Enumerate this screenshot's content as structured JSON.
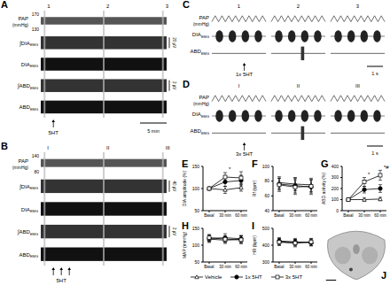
{
  "panels": [
    {
      "panel": "A",
      "type": "trace",
      "markers": [
        "1",
        "2",
        "3"
      ],
      "rows": [
        {
          "name": "PAP",
          "unit": "(mmHg)",
          "yticks": [
            130,
            170
          ]
        },
        {
          "name": "∫DIA",
          "sub": "EMG",
          "scale_bar": "20 µV"
        },
        {
          "name": "DIA",
          "sub": "EMG"
        },
        {
          "name": "∫ABD",
          "sub": "EMG",
          "scale_bar": "2 µV"
        },
        {
          "name": "ABD",
          "sub": "EMG"
        }
      ],
      "time_bar": "5 min",
      "stimulus": "5HT",
      "stimulus_count": 1
    },
    {
      "panel": "B",
      "type": "trace",
      "markers": [
        "I",
        "II",
        "III"
      ],
      "rows": [
        {
          "name": "PAP",
          "unit": "(mmHg)",
          "yticks": [
            80,
            140
          ]
        },
        {
          "name": "∫DIA",
          "sub": "EMG",
          "scale_bar": "40 µV"
        },
        {
          "name": "DIA",
          "sub": "EMG"
        },
        {
          "name": "∫ABD",
          "sub": "EMG",
          "scale_bar": "2 µV"
        },
        {
          "name": "ABD",
          "sub": "EMG"
        }
      ],
      "stimulus": "5HT",
      "stimulus_count": 3
    },
    {
      "panel": "C",
      "type": "trace",
      "columns": [
        "1",
        "2",
        "3"
      ],
      "rows": [
        {
          "name": "PAP",
          "unit": "(mmHg)"
        },
        {
          "name": "DIA",
          "sub": "EMG"
        },
        {
          "name": "ABD",
          "sub": "EMG"
        }
      ],
      "time_bar": "1 s",
      "stimulus": "1x 5HT",
      "stimulus_count": 1
    },
    {
      "panel": "D",
      "type": "trace",
      "columns": [
        "I",
        "II",
        "III"
      ],
      "rows": [
        {
          "name": "PAP",
          "unit": "(mmHg)"
        },
        {
          "name": "DIA",
          "sub": "EMG"
        },
        {
          "name": "ABD",
          "sub": "EMG"
        }
      ],
      "time_bar": "1 s",
      "stimulus": "3x 5HT",
      "stimulus_count": 1
    }
  ],
  "chart_data": [
    {
      "type": "line",
      "panel": "E",
      "y_label": "DIA amplitude (%)",
      "categories": [
        "Basal",
        "30 min",
        "60 min"
      ],
      "ylim": [
        50,
        150
      ],
      "yticks": [
        50,
        100,
        150
      ],
      "series": [
        {
          "name": "Vehicle",
          "color": "#000000",
          "marker": "open-triangle",
          "values": [
            100,
            97,
            102
          ],
          "errors": [
            0,
            8,
            8
          ]
        },
        {
          "name": "1x 5HT",
          "color": "#000000",
          "marker": "filled-circle",
          "values": [
            100,
            115,
            118
          ],
          "errors": [
            0,
            10,
            12
          ]
        },
        {
          "name": "3x 5HT",
          "color": "#000000",
          "marker": "open-square",
          "values": [
            100,
            126,
            124
          ],
          "errors": [
            0,
            10,
            14
          ]
        }
      ],
      "annotations": [
        {
          "series": "3x 5HT",
          "category": "30 min",
          "text": "*"
        }
      ]
    },
    {
      "type": "line",
      "panel": "F",
      "y_label": "Rf (rpm)",
      "categories": [
        "Basal",
        "30 min",
        "60 min"
      ],
      "ylim": [
        40,
        100
      ],
      "yticks": [
        40,
        60,
        80,
        100
      ],
      "series": [
        {
          "name": "Vehicle",
          "color": "#000000",
          "marker": "open-triangle",
          "values": [
            78,
            76,
            75
          ],
          "errors": [
            8,
            9,
            9
          ]
        },
        {
          "name": "1x 5HT",
          "color": "#000000",
          "marker": "filled-circle",
          "values": [
            76,
            74,
            72
          ],
          "errors": [
            8,
            10,
            10
          ]
        },
        {
          "name": "3x 5HT",
          "color": "#000000",
          "marker": "open-square",
          "values": [
            75,
            72,
            73
          ],
          "errors": [
            9,
            10,
            9
          ]
        }
      ],
      "annotations": []
    },
    {
      "type": "line",
      "panel": "G",
      "y_label": "ABD activity (%)",
      "categories": [
        "Basal",
        "30 min",
        "60 min"
      ],
      "ylim": [
        0,
        400
      ],
      "yticks": [
        0,
        100,
        200,
        300,
        400
      ],
      "series": [
        {
          "name": "Vehicle",
          "color": "#000000",
          "marker": "open-triangle",
          "values": [
            100,
            100,
            105
          ],
          "errors": [
            0,
            15,
            15
          ]
        },
        {
          "name": "1x 5HT",
          "color": "#000000",
          "marker": "filled-circle",
          "values": [
            100,
            190,
            200
          ],
          "errors": [
            0,
            30,
            35
          ]
        },
        {
          "name": "3x 5HT",
          "color": "#000000",
          "marker": "open-square",
          "values": [
            100,
            260,
            320
          ],
          "errors": [
            0,
            40,
            45
          ]
        }
      ],
      "annotations": [
        {
          "series": "3x 5HT",
          "category": "30 min",
          "text": "*"
        },
        {
          "series": "3x 5HT",
          "category": "60 min",
          "text": "*#"
        }
      ]
    },
    {
      "type": "line",
      "panel": "H",
      "y_label": "MAP (mmHg)",
      "categories": [
        "Basal",
        "30 min",
        "60 min"
      ],
      "ylim": [
        50,
        150
      ],
      "yticks": [
        50,
        100,
        150
      ],
      "series": [
        {
          "name": "Vehicle",
          "color": "#000000",
          "marker": "open-triangle",
          "values": [
            118,
            115,
            117
          ],
          "errors": [
            10,
            10,
            10
          ]
        },
        {
          "name": "1x 5HT",
          "color": "#000000",
          "marker": "filled-circle",
          "values": [
            120,
            122,
            119
          ],
          "errors": [
            10,
            12,
            10
          ]
        },
        {
          "name": "3x 5HT",
          "color": "#000000",
          "marker": "open-square",
          "values": [
            122,
            118,
            116
          ],
          "errors": [
            10,
            10,
            12
          ]
        }
      ],
      "annotations": []
    },
    {
      "type": "line",
      "panel": "I",
      "y_label": "HR (bpm)",
      "categories": [
        "Basal",
        "30 min",
        "60 min"
      ],
      "ylim": [
        300,
        500
      ],
      "yticks": [
        300,
        400,
        500
      ],
      "legend": "bottom",
      "series": [
        {
          "name": "Vehicle",
          "color": "#000000",
          "marker": "open-triangle",
          "values": [
            420,
            415,
            418
          ],
          "errors": [
            20,
            20,
            20
          ]
        },
        {
          "name": "1x 5HT",
          "color": "#000000",
          "marker": "filled-circle",
          "values": [
            425,
            420,
            415
          ],
          "errors": [
            20,
            20,
            20
          ]
        },
        {
          "name": "3x 5HT",
          "color": "#000000",
          "marker": "open-square",
          "values": [
            418,
            412,
            420
          ],
          "errors": [
            20,
            22,
            20
          ]
        }
      ],
      "annotations": []
    }
  ],
  "image": {
    "panel": "J"
  }
}
